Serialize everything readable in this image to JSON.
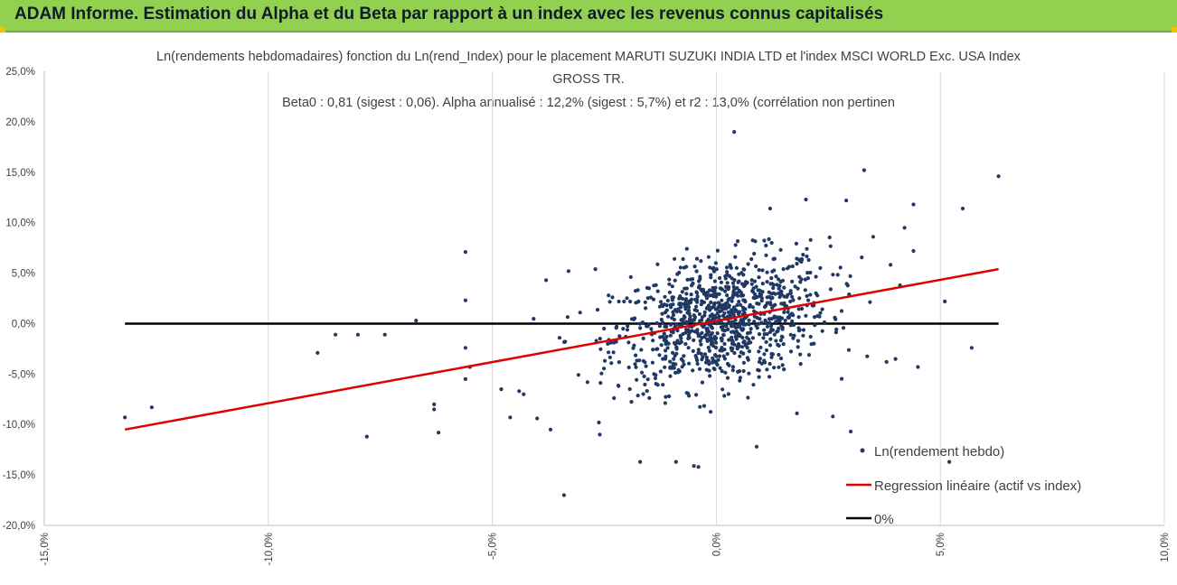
{
  "header": {
    "title": "ADAM Informe. Estimation du Alpha et du Beta par rapport à un index avec les revenus connus capitalisés"
  },
  "colors": {
    "header_bg": "#92d050",
    "points": "#1f3864",
    "regression": "#e00000",
    "zero_line": "#000000",
    "grid": "#d9d9d9"
  },
  "chart_data": {
    "type": "scatter",
    "title_lines": [
      "Ln(rendements hebdomadaires) fonction du Ln(rend_Index) pour le placement MARUTI SUZUKI INDIA LTD et l'index MSCI WORLD Exc. USA Index",
      "GROSS TR.",
      "Beta0 : 0,81 (sigest : 0,06). Alpha annualisé : 12,2% (sigest : 5,7%) et r2 : 13,0% (corrélation non pertinen"
    ],
    "xlim": [
      -0.15,
      0.1
    ],
    "ylim": [
      -0.2,
      0.25
    ],
    "x_ticks": [
      -0.15,
      -0.1,
      -0.05,
      0.0,
      0.05,
      0.1
    ],
    "x_tick_labels": [
      "-15,0%",
      "-10,0%",
      "-5,0%",
      "0,0%",
      "5,0%",
      "10,0%"
    ],
    "y_ticks": [
      -0.2,
      -0.15,
      -0.1,
      -0.05,
      0.0,
      0.05,
      0.1,
      0.15,
      0.2,
      0.25
    ],
    "y_tick_labels": [
      "-20,0%",
      "-15,0%",
      "-10,0%",
      "-5,0%",
      "0,0%",
      "5,0%",
      "10,0%",
      "15,0%",
      "20,0%",
      "25,0%"
    ],
    "grid": "vertical",
    "legend_position": "bottom-right",
    "legend": [
      "Ln(rendement hebdo)",
      "Regression linéaire (actif vs index)",
      "0%"
    ],
    "series": [
      {
        "name": "Ln(rendement hebdo)",
        "kind": "scatter",
        "color": "#1f3864",
        "outliers": [
          [
            -0.132,
            -0.093
          ],
          [
            -0.126,
            -0.083
          ],
          [
            -0.089,
            -0.029
          ],
          [
            -0.085,
            -0.011
          ],
          [
            -0.08,
            -0.011
          ],
          [
            -0.078,
            -0.112
          ],
          [
            -0.074,
            -0.011
          ],
          [
            -0.067,
            0.003
          ],
          [
            -0.063,
            -0.08
          ],
          [
            -0.063,
            -0.085
          ],
          [
            -0.062,
            -0.108
          ],
          [
            -0.056,
            0.071
          ],
          [
            -0.056,
            0.023
          ],
          [
            -0.056,
            -0.024
          ],
          [
            -0.056,
            -0.055
          ],
          [
            -0.055,
            -0.043
          ],
          [
            -0.048,
            -0.065
          ],
          [
            -0.046,
            -0.093
          ],
          [
            -0.044,
            -0.067
          ],
          [
            -0.043,
            -0.07
          ],
          [
            -0.04,
            -0.094
          ],
          [
            -0.038,
            0.043
          ],
          [
            -0.037,
            -0.105
          ],
          [
            -0.034,
            -0.17
          ],
          [
            -0.033,
            0.052
          ],
          [
            -0.027,
            0.054
          ],
          [
            -0.026,
            -0.11
          ],
          [
            -0.017,
            -0.137
          ],
          [
            -0.012,
            -0.013
          ],
          [
            -0.009,
            -0.137
          ],
          [
            -0.005,
            -0.141
          ],
          [
            -0.004,
            -0.142
          ],
          [
            0.004,
            0.19
          ],
          [
            0.009,
            -0.122
          ],
          [
            0.012,
            0.114
          ],
          [
            0.018,
            -0.089
          ],
          [
            0.02,
            0.123
          ],
          [
            0.026,
            -0.092
          ],
          [
            0.029,
            0.122
          ],
          [
            0.03,
            -0.107
          ],
          [
            0.033,
            0.152
          ],
          [
            0.035,
            0.086
          ],
          [
            0.038,
            -0.038
          ],
          [
            0.04,
            -0.035
          ],
          [
            0.041,
            0.038
          ],
          [
            0.042,
            0.095
          ],
          [
            0.044,
            0.118
          ],
          [
            0.044,
            0.072
          ],
          [
            0.045,
            -0.043
          ],
          [
            0.051,
            0.022
          ],
          [
            0.052,
            -0.137
          ],
          [
            0.055,
            0.114
          ],
          [
            0.057,
            -0.024
          ],
          [
            0.063,
            0.146
          ]
        ],
        "bulk_note": "~1000 points concentrated around (0.00, 0.00), x spread ≈ ±2.5%, y spread ≈ ±5%",
        "bulk_spread": {
          "x_std": 0.012,
          "y_std": 0.031
        }
      },
      {
        "name": "Regression linéaire (actif vs index)",
        "kind": "line",
        "color": "#e00000",
        "points": [
          [
            -0.132,
            -0.105
          ],
          [
            0.063,
            0.054
          ]
        ]
      },
      {
        "name": "0%",
        "kind": "line",
        "color": "#000000",
        "points": [
          [
            -0.132,
            0.0
          ],
          [
            0.063,
            0.0
          ]
        ]
      }
    ]
  }
}
